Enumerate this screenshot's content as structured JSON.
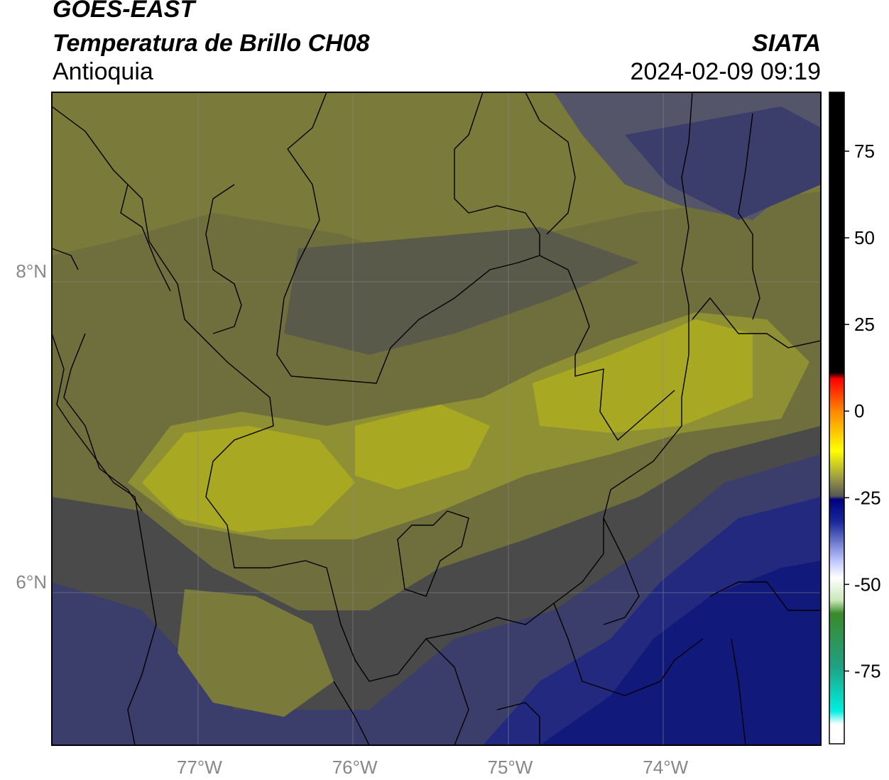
{
  "header": {
    "satellite": "GOES-EAST",
    "product": "Temperatura de Brillo CH08",
    "organization": "SIATA",
    "region": "Antioquia",
    "datetime": "2024-02-09 09:19"
  },
  "map": {
    "lon_range": [
      -77.95,
      -73.0
    ],
    "lat_range": [
      4.95,
      9.15
    ],
    "x_ticks": [
      "77°W",
      "76°W",
      "75°W",
      "74°W"
    ],
    "y_ticks": [
      "8°N",
      "6°N"
    ],
    "gridlines": true,
    "basemap": "brightness-temperature field with administrative boundaries",
    "colors": {
      "warm_yellow": "#a8a823",
      "olive": "#7a7a3a",
      "grey": "#4a4a4a",
      "slate_blue": "#3b3d6a",
      "deep_blue": "#1a2281"
    }
  },
  "colorbar": {
    "orientation": "vertical",
    "placement": "right",
    "ticks": [
      "75",
      "50",
      "25",
      "0",
      "-25",
      "-50",
      "-75"
    ],
    "ticks_values": [
      75,
      50,
      25,
      0,
      -25,
      -50,
      -75
    ],
    "range": [
      -96,
      92
    ]
  }
}
